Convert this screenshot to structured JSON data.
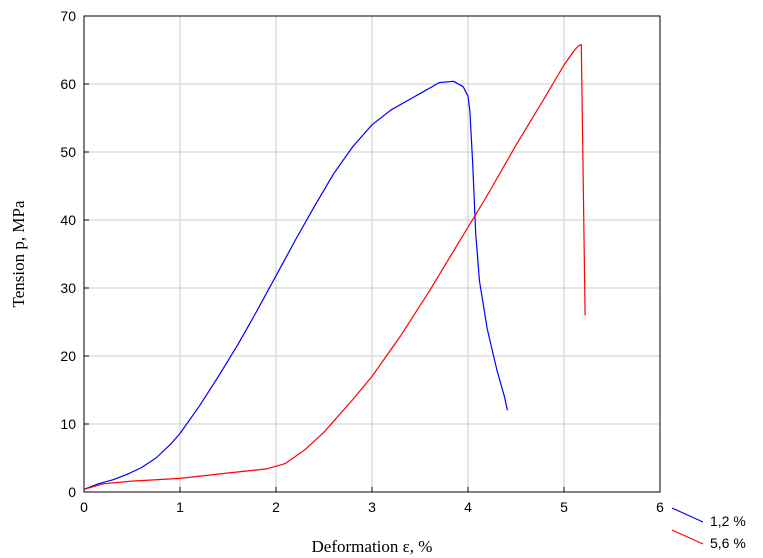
{
  "chart_data": {
    "type": "line",
    "title": "",
    "xlabel": "Deformation ε, %",
    "ylabel": "Tension p, MPa",
    "xlim": [
      0,
      6
    ],
    "ylim": [
      0,
      70
    ],
    "xticks": [
      "0",
      "1",
      "2",
      "3",
      "4",
      "5",
      "6"
    ],
    "yticks": [
      "0",
      "10",
      "20",
      "30",
      "40",
      "50",
      "60",
      "70"
    ],
    "grid": true,
    "legend_position": "bottom-right, outside plot",
    "series": [
      {
        "name": "1,2 %",
        "color": "#0000ff",
        "x": [
          0.0,
          0.15,
          0.3,
          0.45,
          0.6,
          0.75,
          0.9,
          1.0,
          1.2,
          1.4,
          1.6,
          1.8,
          2.0,
          2.2,
          2.4,
          2.6,
          2.8,
          3.0,
          3.2,
          3.4,
          3.55,
          3.6,
          3.7,
          3.85,
          3.95,
          4.0,
          4.02,
          4.05,
          4.08,
          4.12,
          4.2,
          4.3,
          4.38,
          4.41
        ],
        "y": [
          0.4,
          1.2,
          1.8,
          2.6,
          3.6,
          5.0,
          7.0,
          8.6,
          12.6,
          17.0,
          21.6,
          26.6,
          31.8,
          37.0,
          42.0,
          46.8,
          50.8,
          54.0,
          56.2,
          57.8,
          59.0,
          59.4,
          60.2,
          60.4,
          59.6,
          58.2,
          56.0,
          48.0,
          38.0,
          31.0,
          24.0,
          18.0,
          14.0,
          12.0
        ]
      },
      {
        "name": "5,6 %",
        "color": "#ff0000",
        "x": [
          0.0,
          0.2,
          0.5,
          1.0,
          1.5,
          1.9,
          2.1,
          2.3,
          2.5,
          2.8,
          3.0,
          3.3,
          3.6,
          3.9,
          4.2,
          4.5,
          4.8,
          5.0,
          5.1,
          5.15,
          5.18,
          5.2,
          5.22
        ],
        "y": [
          0.4,
          1.2,
          1.6,
          2.0,
          2.8,
          3.4,
          4.2,
          6.2,
          8.8,
          13.6,
          17.0,
          23.0,
          29.6,
          36.6,
          43.6,
          51.0,
          58.0,
          62.8,
          64.8,
          65.6,
          65.8,
          46.0,
          26.0
        ]
      }
    ]
  }
}
